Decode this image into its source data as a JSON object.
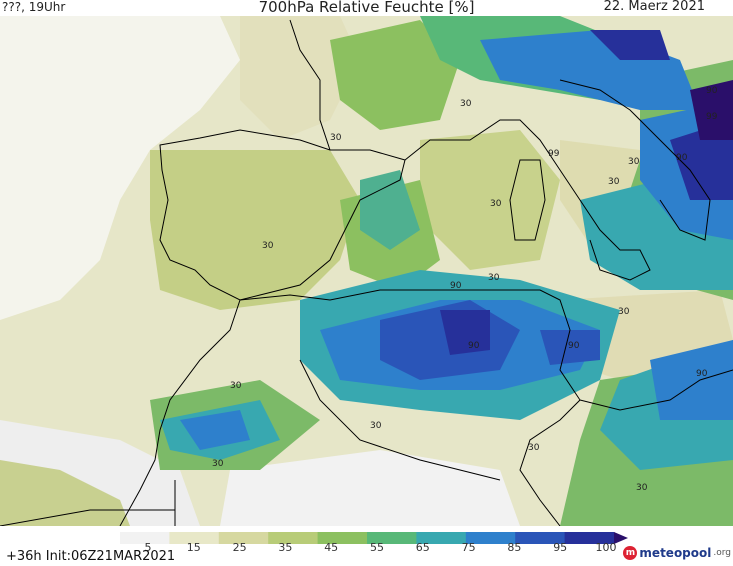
{
  "header": {
    "left": "???, 19Uhr",
    "title": "700hPa Relative Feuchte [%]",
    "date": "22. Maerz 2021"
  },
  "footer": {
    "forecast": "+36h  Init:06Z21MAR2021",
    "brand": "meteopool",
    "brand_suffix": ".org"
  },
  "colorbar": {
    "ticks": [
      "5",
      "15",
      "25",
      "35",
      "45",
      "55",
      "65",
      "75",
      "85",
      "95",
      "100"
    ],
    "colors": [
      "#f2f2f2",
      "#e8e8c8",
      "#d6d8a0",
      "#b8cc78",
      "#8cc060",
      "#58b878",
      "#38a8b0",
      "#2e80cc",
      "#2a55b8",
      "#26309a",
      "#2a0f6a"
    ]
  },
  "contour_labels": [
    "30",
    "30",
    "30",
    "30",
    "30",
    "30",
    "30",
    "30",
    "30",
    "30",
    "30",
    "30",
    "30",
    "90",
    "90",
    "90",
    "90",
    "90",
    "90",
    "99"
  ]
}
